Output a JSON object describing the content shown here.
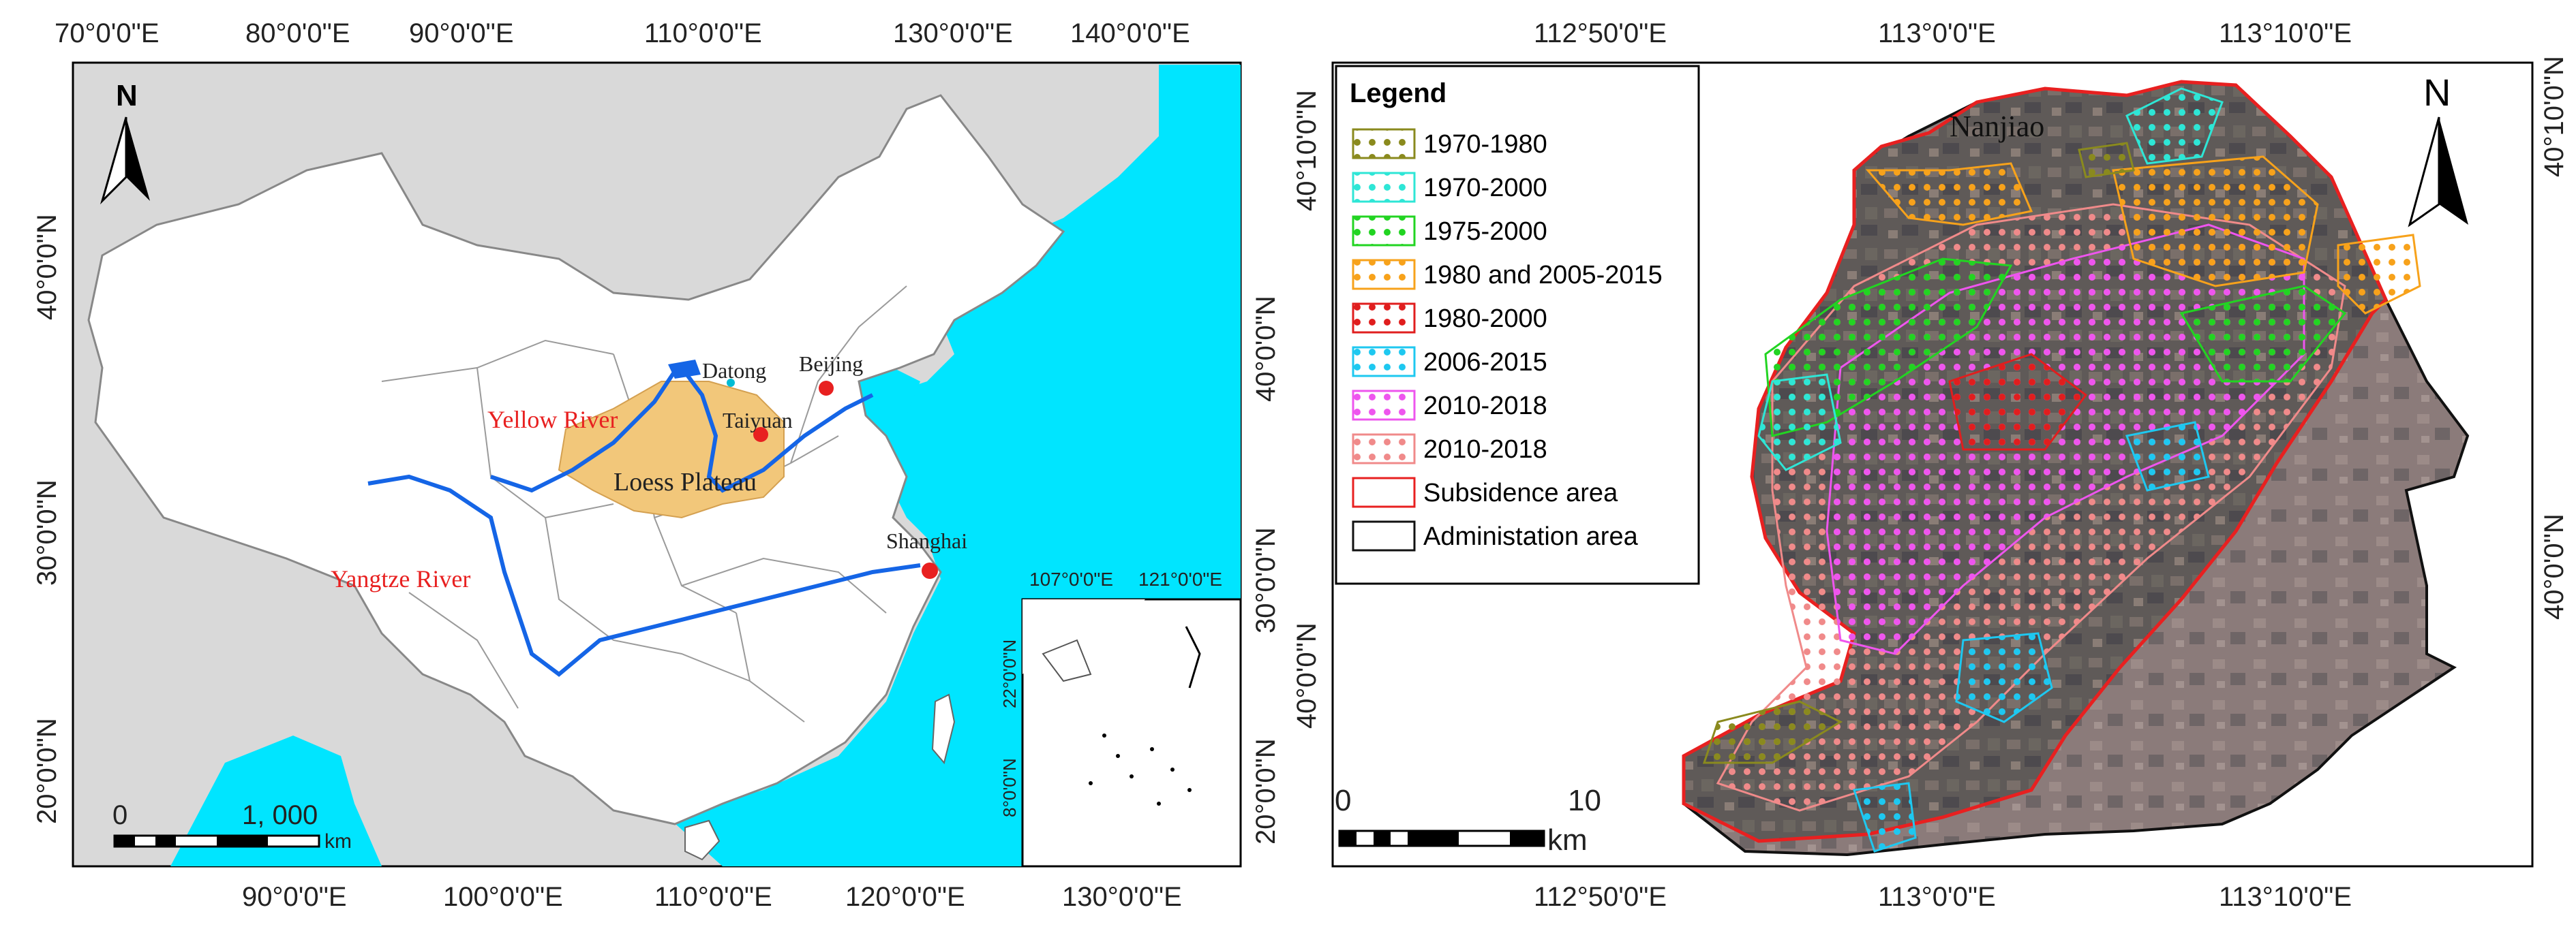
{
  "left_map": {
    "top_ticks": [
      "70°0'0\"E",
      "80°0'0\"E",
      "90°0'0\"E",
      "110°0'0\"E",
      "130°0'0\"E",
      "140°0'0\"E"
    ],
    "bottom_ticks": [
      "90°0'0\"E",
      "100°0'0\"E",
      "110°0'0\"E",
      "120°0'0\"E"
    ],
    "left_ticks": [
      "40°0'0\"N",
      "30°0'0\"N",
      "20°0'0\"N"
    ],
    "right_ticks": [
      "40°0'0\"N",
      "30°0'0\"N",
      "20°0'0\"N"
    ],
    "north_label": "N",
    "places": {
      "datong": "Datong",
      "beijing": "Beijing",
      "taiyuan": "Taiyuan",
      "shanghai": "Shanghai",
      "loess_plateau": "Loess Plateau",
      "yellow_river": "Yellow River",
      "yangtze_river": "Yangtze River"
    },
    "scale_bar": {
      "start": "0",
      "end": "1, 000",
      "unit": "km"
    },
    "inset": {
      "top_ticks": [
        "107°0'0\"E",
        "121°0'0\"E"
      ],
      "left_ticks": [
        "22°0'0\"N",
        "8°0'0\"N"
      ],
      "bottom_tick": "130°0'0\"E"
    },
    "colors": {
      "sea": "#00e5ff",
      "neighbor": "#d9d9d9",
      "china": "#ffffff",
      "loess": "#f2c77a",
      "river": "#1565e6",
      "city": "#e82020"
    }
  },
  "right_map": {
    "top_ticks": [
      "112°50'0\"E",
      "113°0'0\"E",
      "113°10'0\"E"
    ],
    "bottom_ticks": [
      "112°50'0\"E",
      "113°0'0\"E",
      "113°10'0\"E"
    ],
    "left_ticks": [
      "40°10'0\"N",
      "40°0'0\"N"
    ],
    "right_ticks": [
      "40°10'0\"N",
      "40°0'0\"N"
    ],
    "north_label": "N",
    "place_label": "Nanjiao",
    "scale_bar": {
      "start": "0",
      "end": "10",
      "unit": "km"
    },
    "legend": {
      "title": "Legend",
      "items": [
        {
          "label": "1970-1980",
          "color": "#8a8a1e"
        },
        {
          "label": "1970-2000",
          "color": "#2ee6d6"
        },
        {
          "label": "1975-2000",
          "color": "#22d422"
        },
        {
          "label": "1980 and 2005-2015",
          "color": "#f7a21b"
        },
        {
          "label": "1980-2000",
          "color": "#e01e1e"
        },
        {
          "label": "2006-2015",
          "color": "#1ec8f0"
        },
        {
          "label": "2010-2018",
          "color": "#ee55ee"
        },
        {
          "label": "2010-2018",
          "color": "#f08a8a"
        },
        {
          "label": "Subsidence area",
          "color": "#e82020"
        },
        {
          "label": "Administation area",
          "color": "#111111"
        }
      ]
    }
  }
}
